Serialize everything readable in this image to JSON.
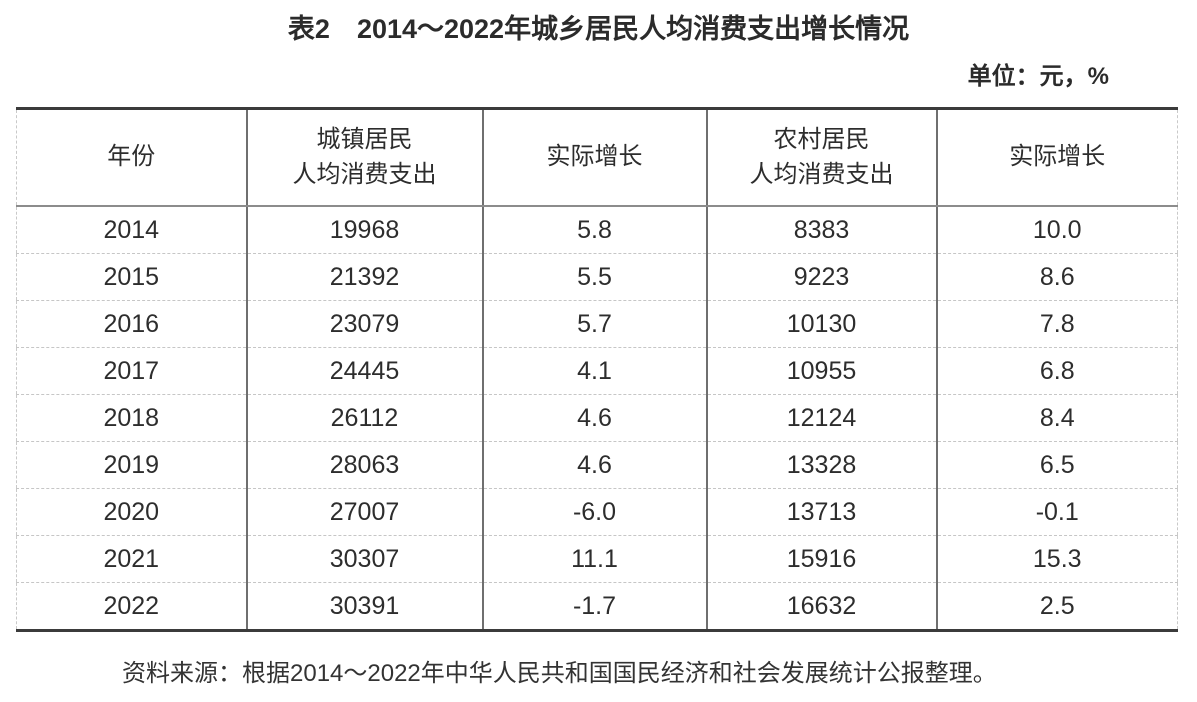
{
  "title": "表2　2014～2022年城乡居民人均消费支出增长情况",
  "unit_note": "单位：元，%",
  "table": {
    "headers": [
      "年份",
      "城镇居民\n人均消费支出",
      "实际增长",
      "农村居民\n人均消费支出",
      "实际增长"
    ],
    "rows": [
      [
        "2014",
        "19968",
        "5.8",
        "8383",
        "10.0"
      ],
      [
        "2015",
        "21392",
        "5.5",
        "9223",
        "8.6"
      ],
      [
        "2016",
        "23079",
        "5.7",
        "10130",
        "7.8"
      ],
      [
        "2017",
        "24445",
        "4.1",
        "10955",
        "6.8"
      ],
      [
        "2018",
        "26112",
        "4.6",
        "12124",
        "8.4"
      ],
      [
        "2019",
        "28063",
        "4.6",
        "13328",
        "6.5"
      ],
      [
        "2020",
        "27007",
        "-6.0",
        "13713",
        "-0.1"
      ],
      [
        "2021",
        "30307",
        "11.1",
        "15916",
        "15.3"
      ],
      [
        "2022",
        "30391",
        "-1.7",
        "16632",
        "2.5"
      ]
    ]
  },
  "source_note": "资料来源：根据2014～2022年中华人民共和国国民经济和社会发展统计公报整理。",
  "colors": {
    "background": "#ffffff",
    "text": "#2d2d2d",
    "heavy_border": "#3b3b3b",
    "column_border": "#6f6f6f",
    "header_rule": "#8c8c8c",
    "row_rule": "#c6c6c6"
  }
}
